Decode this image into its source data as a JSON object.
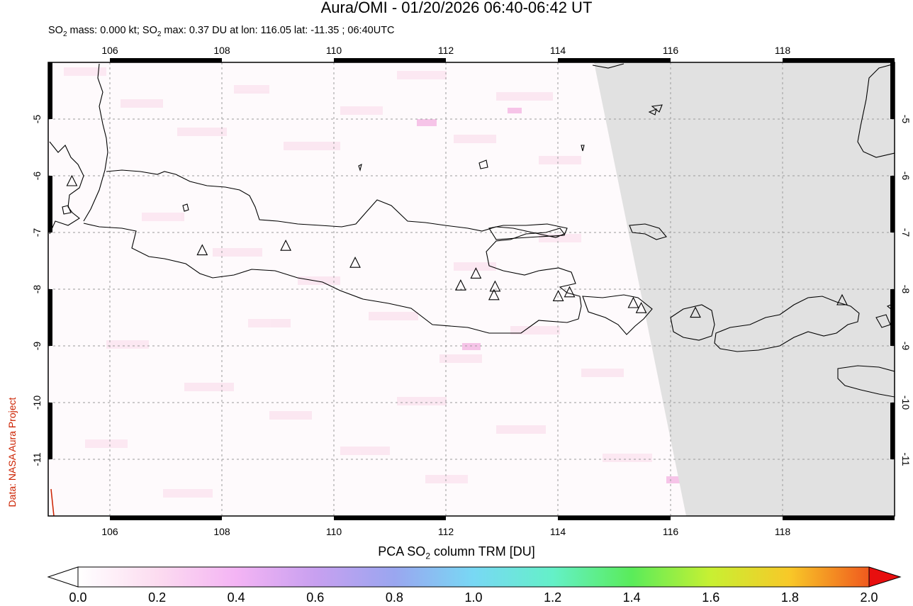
{
  "header": {
    "title": "Aura/OMI - 01/20/2026 06:40-06:42 UT",
    "subtitle_prefix": "SO",
    "subtitle_sub": "2",
    "subtitle_mid": " mass: 0.000 kt; SO",
    "subtitle_sub2": "2",
    "subtitle_rest": " max: 0.37 DU at lon: 116.05 lat: -11.35 ; 06:40UTC"
  },
  "credit": "Data: NASA Aura Project",
  "map": {
    "lon_ticks": [
      "106",
      "108",
      "110",
      "112",
      "114",
      "116",
      "118"
    ],
    "lat_ticks": [
      "-5",
      "-6",
      "-7",
      "-8",
      "-9",
      "-10",
      "-11"
    ],
    "lon_range": [
      105,
      120
    ],
    "lat_range": [
      -12,
      -4
    ],
    "no_data_color": "#e1e1e1",
    "volcano_marker": "triangle-icon",
    "volcanoes": [
      {
        "lon": 105.42,
        "lat": -6.1
      },
      {
        "lon": 107.73,
        "lat": -7.32
      },
      {
        "lon": 109.21,
        "lat": -7.24
      },
      {
        "lon": 110.44,
        "lat": -7.54
      },
      {
        "lon": 112.31,
        "lat": -7.94
      },
      {
        "lon": 112.58,
        "lat": -7.73
      },
      {
        "lon": 112.92,
        "lat": -7.96
      },
      {
        "lon": 112.9,
        "lat": -8.11
      },
      {
        "lon": 114.04,
        "lat": -8.13
      },
      {
        "lon": 114.24,
        "lat": -8.06
      },
      {
        "lon": 115.37,
        "lat": -8.25
      },
      {
        "lon": 115.51,
        "lat": -8.34
      },
      {
        "lon": 116.47,
        "lat": -8.42
      },
      {
        "lon": 119.07,
        "lat": -8.2
      }
    ]
  },
  "colorbar": {
    "label_prefix": "PCA SO",
    "label_sub": "2",
    "label_rest": " column TRM [DU]",
    "ticks": [
      "0.0",
      "0.2",
      "0.4",
      "0.6",
      "0.8",
      "1.0",
      "1.2",
      "1.4",
      "1.6",
      "1.8",
      "2.0"
    ],
    "colors": [
      "#ffffff",
      "#fcdcf0",
      "#f4b4f4",
      "#c8a0f0",
      "#9aa6f0",
      "#78d8f4",
      "#64f0c8",
      "#5aec5a",
      "#c8f032",
      "#f8c828",
      "#f05a1e",
      "#e80f0f"
    ]
  }
}
